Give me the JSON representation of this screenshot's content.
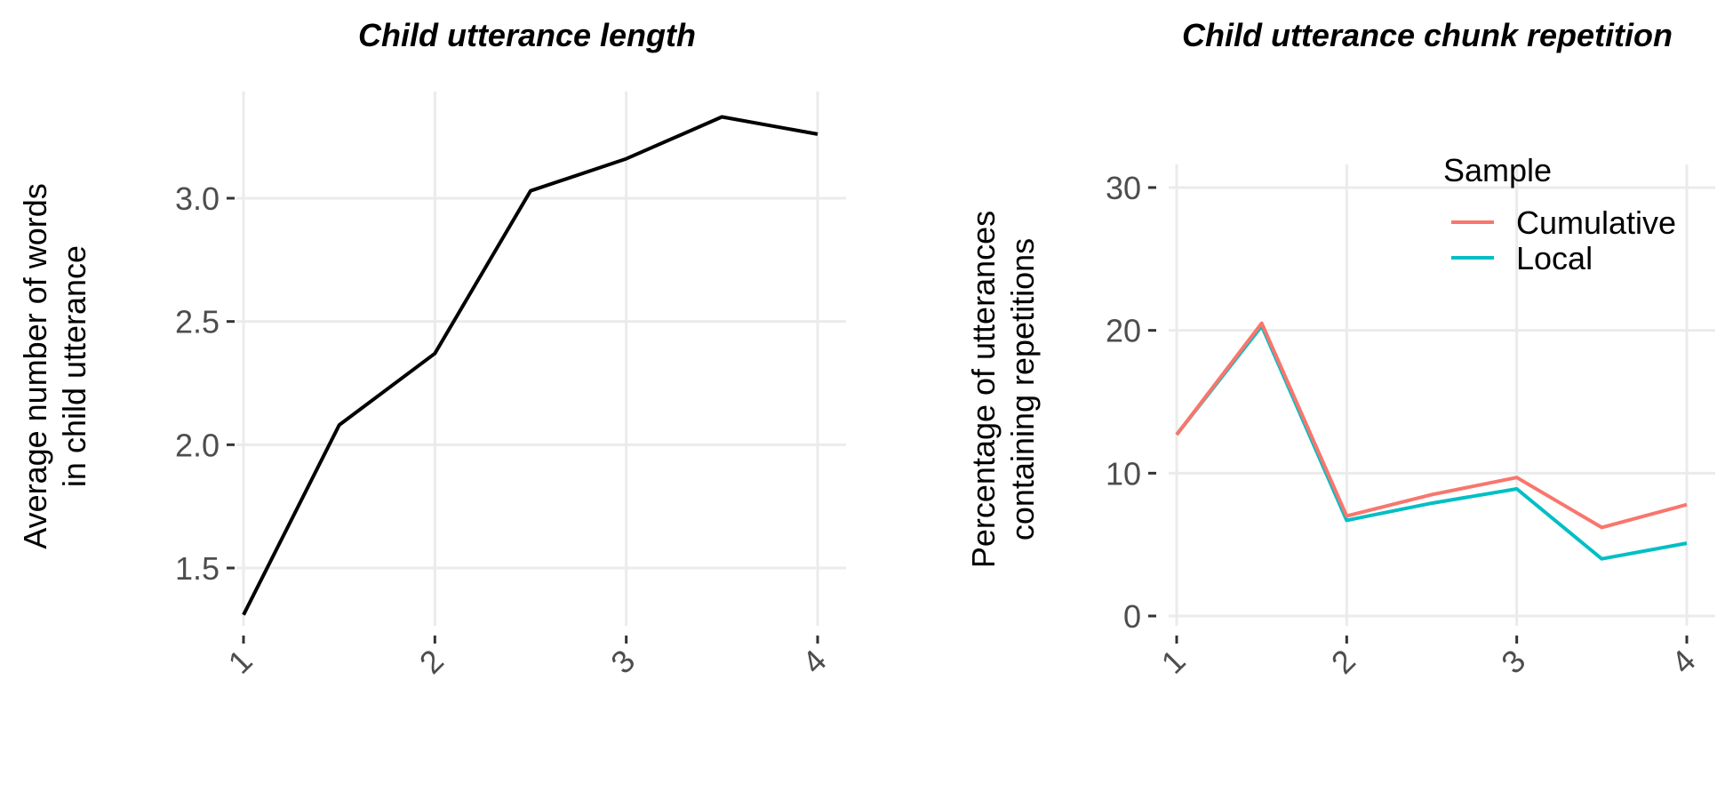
{
  "chart_data": [
    {
      "type": "line",
      "title": "Child utterance length",
      "xlabel": "",
      "ylabel": [
        "Average number of words",
        "in child utterance"
      ],
      "x": [
        1,
        1.5,
        2,
        2.5,
        3,
        3.5,
        4
      ],
      "xticks": [
        "1",
        "2",
        "3",
        "4"
      ],
      "yticks": [
        "1.5",
        "2.0",
        "2.5",
        "3.0"
      ],
      "ylim": [
        1.3,
        3.3
      ],
      "grid": true,
      "series": [
        {
          "color": "#000000",
          "values": [
            1.31,
            2.08,
            2.37,
            3.03,
            3.16,
            3.33,
            3.26
          ]
        }
      ]
    },
    {
      "type": "line",
      "title": "Child utterance chunk repetition",
      "xlabel": "",
      "ylabel": [
        "Percentage of utterances",
        "containing repetitions"
      ],
      "x": [
        1,
        1.5,
        2,
        2.5,
        3,
        3.5,
        4
      ],
      "xticks": [
        "1",
        "2",
        "3",
        "4"
      ],
      "yticks": [
        "0",
        "10",
        "20",
        "30"
      ],
      "ylim": [
        0,
        31
      ],
      "grid": true,
      "legend": {
        "title": "Sample",
        "position": "top-right"
      },
      "series": [
        {
          "name": "Cumulative",
          "color": "#F8766D",
          "values": [
            12.7,
            20.5,
            7.0,
            8.5,
            9.7,
            6.2,
            7.8
          ]
        },
        {
          "name": "Local",
          "color": "#00BFC4",
          "values": [
            12.7,
            20.3,
            6.7,
            7.9,
            8.9,
            4.0,
            5.1
          ]
        }
      ]
    }
  ]
}
